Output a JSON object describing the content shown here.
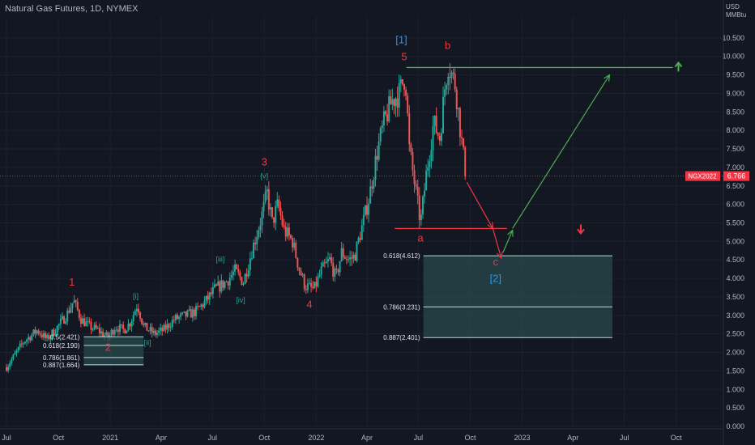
{
  "header": {
    "title": "Natural Gas Futures, 1D, NYMEX",
    "unit_line1": "USD",
    "unit_line2": "MMBtu"
  },
  "price_tag": {
    "symbol": "NGX2022",
    "value": "6.766",
    "color": "#f23645"
  },
  "colors": {
    "background": "#131722",
    "up_candle": "#26a69a",
    "down_candle": "#ef5350",
    "resistance": "#4caf50",
    "support": "#f23645",
    "projection_up": "#4caf50",
    "projection_down": "#f23645",
    "target_box": "#2a4a4e"
  },
  "chart_data": {
    "type": "candlestick",
    "x_axis": {
      "ticks": [
        "Jul",
        "Oct",
        "2021",
        "Apr",
        "Jul",
        "Oct",
        "2022",
        "Apr",
        "Jul",
        "Oct",
        "2023",
        "Apr",
        "Jul",
        "Oct"
      ],
      "range": [
        "2020-07-01",
        "2023-11-15"
      ]
    },
    "y_axis": {
      "ticks": [
        "0.000",
        "0.500",
        "1.000",
        "1.500",
        "2.000",
        "2.500",
        "3.000",
        "3.500",
        "4.000",
        "4.500",
        "5.000",
        "5.500",
        "6.000",
        "6.500",
        "7.000",
        "7.500",
        "8.000",
        "8.500",
        "9.000",
        "9.500",
        "10.000",
        "10.500"
      ],
      "range": [
        0,
        11.0
      ],
      "scale": "linear"
    },
    "close_path": [
      [
        "2020-07-01",
        1.6
      ],
      [
        "2020-08-01",
        2.3
      ],
      [
        "2020-08-25",
        2.6
      ],
      [
        "2020-09-10",
        2.35
      ],
      [
        "2020-09-25",
        2.6
      ],
      [
        "2020-10-15",
        3.0
      ],
      [
        "2020-10-28",
        3.4
      ],
      [
        "2020-11-10",
        2.9
      ],
      [
        "2020-11-25",
        2.7
      ],
      [
        "2020-12-10",
        2.6
      ],
      [
        "2020-12-28",
        2.4
      ],
      [
        "2021-01-10",
        2.7
      ],
      [
        "2021-01-25",
        2.6
      ],
      [
        "2021-02-05",
        2.8
      ],
      [
        "2021-02-18",
        3.3
      ],
      [
        "2021-03-01",
        2.7
      ],
      [
        "2021-03-20",
        2.5
      ],
      [
        "2021-04-05",
        2.6
      ],
      [
        "2021-04-25",
        2.9
      ],
      [
        "2021-05-15",
        3.0
      ],
      [
        "2021-06-01",
        3.1
      ],
      [
        "2021-06-20",
        3.4
      ],
      [
        "2021-07-05",
        3.7
      ],
      [
        "2021-07-25",
        3.9
      ],
      [
        "2021-08-10",
        4.2
      ],
      [
        "2021-08-25",
        3.9
      ],
      [
        "2021-09-10",
        4.8
      ],
      [
        "2021-09-25",
        5.6
      ],
      [
        "2021-10-06",
        6.3
      ],
      [
        "2021-10-15",
        5.5
      ],
      [
        "2021-10-25",
        6.0
      ],
      [
        "2021-11-05",
        5.3
      ],
      [
        "2021-11-20",
        5.0
      ],
      [
        "2021-12-01",
        4.3
      ],
      [
        "2021-12-12",
        3.8
      ],
      [
        "2021-12-28",
        3.7
      ],
      [
        "2022-01-10",
        4.2
      ],
      [
        "2022-01-25",
        4.5
      ],
      [
        "2022-02-05",
        4.0
      ],
      [
        "2022-02-15",
        4.7
      ],
      [
        "2022-02-28",
        4.5
      ],
      [
        "2022-03-10",
        4.6
      ],
      [
        "2022-03-25",
        5.5
      ],
      [
        "2022-04-05",
        6.2
      ],
      [
        "2022-04-20",
        7.5
      ],
      [
        "2022-05-01",
        8.2
      ],
      [
        "2022-05-15",
        8.8
      ],
      [
        "2022-05-28",
        9.0
      ],
      [
        "2022-06-08",
        9.5
      ],
      [
        "2022-06-15",
        7.5
      ],
      [
        "2022-06-25",
        6.5
      ],
      [
        "2022-07-05",
        5.5
      ],
      [
        "2022-07-15",
        6.8
      ],
      [
        "2022-07-28",
        8.2
      ],
      [
        "2022-08-08",
        7.8
      ],
      [
        "2022-08-18",
        9.3
      ],
      [
        "2022-08-23",
        9.8
      ],
      [
        "2022-09-05",
        9.2
      ],
      [
        "2022-09-15",
        7.8
      ],
      [
        "2022-09-23",
        6.766
      ]
    ],
    "horizontal_lines": [
      {
        "name": "resistance",
        "value": 9.7,
        "x_start": "2022-06-10",
        "x_end": "2023-09-25"
      },
      {
        "name": "support",
        "value": 5.35,
        "x_start": "2022-05-20",
        "x_end": "2022-12-05"
      }
    ],
    "arrows": [
      {
        "name": "down-a",
        "from": [
          "2022-09-25",
          6.6
        ],
        "to": [
          "2022-11-10",
          5.35
        ]
      },
      {
        "name": "down-b",
        "from": [
          "2022-11-10",
          5.35
        ],
        "to": [
          "2022-11-25",
          4.55
        ]
      },
      {
        "name": "up-a",
        "from": [
          "2022-11-28",
          4.7
        ],
        "to": [
          "2022-12-15",
          5.3
        ]
      },
      {
        "name": "up-b",
        "from": [
          "2022-12-15",
          5.35
        ],
        "to": [
          "2023-06-05",
          9.5
        ]
      }
    ],
    "side_arrows": [
      {
        "name": "resistance-up-arrow",
        "at": [
          "2023-10-05",
          9.7
        ],
        "direction": "up"
      },
      {
        "name": "support-down-arrow",
        "at": [
          "2023-04-15",
          5.35
        ],
        "direction": "down"
      }
    ],
    "wave_labels": [
      {
        "text": "1",
        "at": [
          "2020-10-25",
          3.8
        ],
        "color": "#f23645"
      },
      {
        "text": "2",
        "at": [
          "2020-12-28",
          2.05
        ],
        "color": "#f23645"
      },
      {
        "text": "[i]",
        "at": [
          "2021-02-15",
          3.45
        ],
        "color": "#26a69a"
      },
      {
        "text": "[ii]",
        "at": [
          "2021-03-08",
          2.2
        ],
        "color": "#26a69a"
      },
      {
        "text": "[iii]",
        "at": [
          "2021-07-15",
          4.45
        ],
        "color": "#26a69a"
      },
      {
        "text": "[iv]",
        "at": [
          "2021-08-20",
          3.35
        ],
        "color": "#26a69a"
      },
      {
        "text": "3",
        "at": [
          "2021-10-01",
          7.05
        ],
        "color": "#f23645"
      },
      {
        "text": "[v]",
        "at": [
          "2021-10-01",
          6.7
        ],
        "color": "#26a69a"
      },
      {
        "text": "4",
        "at": [
          "2021-12-20",
          3.2
        ],
        "color": "#f23645"
      },
      {
        "text": "[1]",
        "at": [
          "2022-06-01",
          10.35
        ],
        "color": "#2196f3"
      },
      {
        "text": "5",
        "at": [
          "2022-06-06",
          9.9
        ],
        "color": "#f23645"
      },
      {
        "text": "b",
        "at": [
          "2022-08-22",
          10.2
        ],
        "color": "#f23645"
      },
      {
        "text": "a",
        "at": [
          "2022-07-05",
          5.0
        ],
        "color": "#f23645"
      },
      {
        "text": "c",
        "at": [
          "2022-11-15",
          4.35
        ],
        "color": "#f23645"
      },
      {
        "text": "[2]",
        "at": [
          "2022-11-15",
          3.9
        ],
        "color": "#2196f3"
      }
    ],
    "fib_levels_main": [
      {
        "label": "0.618(4.612)",
        "value": 4.612
      },
      {
        "label": "0.786(3.231)",
        "value": 3.231
      },
      {
        "label": "0.887(2.401)",
        "value": 2.401
      }
    ],
    "fib_box_main": {
      "x_start": "2022-07-10",
      "x_end": "2023-06-10",
      "top": 4.612,
      "bottom": 2.401
    },
    "fib_levels_small": [
      {
        "label": "0.5(2.421)",
        "value": 2.421
      },
      {
        "label": "0.618(2.190)",
        "value": 2.19
      },
      {
        "label": "0.786(1.861)",
        "value": 1.861
      },
      {
        "label": "0.887(1.664)",
        "value": 1.664
      }
    ],
    "fib_box_small": {
      "x_start": "2020-11-15",
      "x_end": "2021-03-01",
      "top": 2.421,
      "bottom": 1.664
    }
  }
}
